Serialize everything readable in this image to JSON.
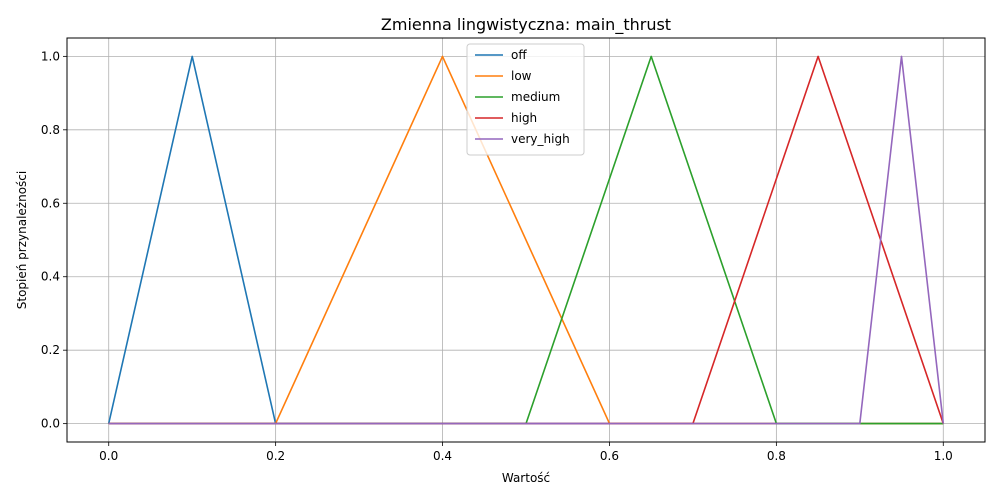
{
  "chart_data": {
    "type": "line",
    "title": "Zmienna lingwistyczna: main_thrust",
    "xlabel": "Wartość",
    "ylabel": "Stopień przynależności",
    "xlim": [
      -0.05,
      1.05
    ],
    "ylim": [
      -0.05,
      1.05
    ],
    "xticks": [
      "0.0",
      "0.2",
      "0.4",
      "0.6",
      "0.8",
      "1.0"
    ],
    "yticks": [
      "0.0",
      "0.2",
      "0.4",
      "0.6",
      "0.8",
      "1.0"
    ],
    "grid": true,
    "legend_position": "top-center",
    "series": [
      {
        "name": "off",
        "color": "#1f77b4",
        "x": [
          0.0,
          0.1,
          0.2,
          1.0
        ],
        "y": [
          0,
          1,
          0,
          0
        ]
      },
      {
        "name": "low",
        "color": "#ff7f0e",
        "x": [
          0.0,
          0.2,
          0.4,
          0.6,
          1.0
        ],
        "y": [
          0,
          0,
          1,
          0,
          0
        ]
      },
      {
        "name": "medium",
        "color": "#2ca02c",
        "x": [
          0.0,
          0.5,
          0.65,
          0.8,
          1.0
        ],
        "y": [
          0,
          0,
          1,
          0,
          0
        ]
      },
      {
        "name": "high",
        "color": "#d62728",
        "x": [
          0.0,
          0.7,
          0.85,
          1.0
        ],
        "y": [
          0,
          0,
          1,
          0
        ]
      },
      {
        "name": "very_high",
        "color": "#9467bd",
        "x": [
          0.0,
          0.9,
          0.95,
          1.0
        ],
        "y": [
          0,
          0,
          1,
          0
        ]
      }
    ]
  }
}
